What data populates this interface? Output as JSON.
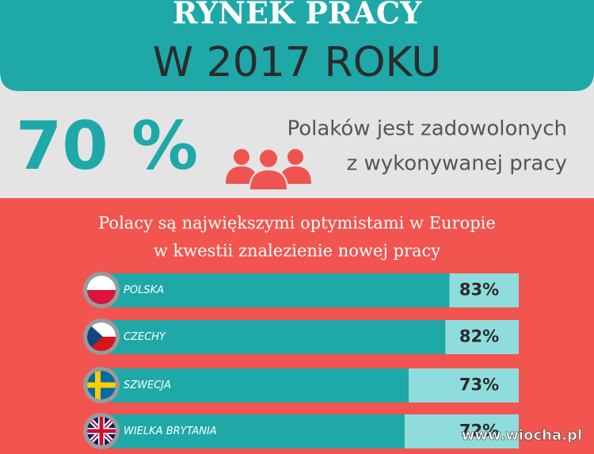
{
  "header": {
    "title": "RYNEK PRACY",
    "subtitle": "W 2017 ROKU"
  },
  "stat": {
    "value": "70 %",
    "text_line1": "Polaków jest zadowolonych",
    "text_line2": "z wykonywanej pracy"
  },
  "survey": {
    "heading_line1": "Polacy są największymi optymistami w Europie",
    "heading_line2": "w kwestii znalezienie nowej pracy",
    "categories": [
      "POLSKA",
      "CZECHY",
      "SZWECJA",
      "WIELKA BRYTANIA"
    ],
    "values": [
      83,
      82,
      73,
      72
    ],
    "value_labels": [
      "83%",
      "82%",
      "73%",
      "72%"
    ]
  },
  "watermark": "www.wiocha.pl"
}
